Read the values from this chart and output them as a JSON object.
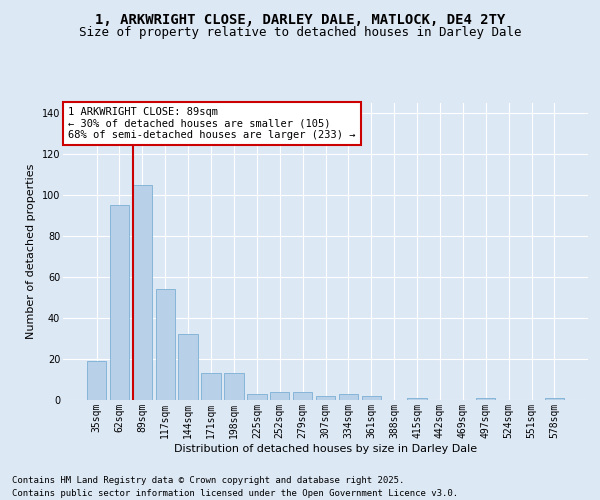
{
  "title_line1": "1, ARKWRIGHT CLOSE, DARLEY DALE, MATLOCK, DE4 2TY",
  "title_line2": "Size of property relative to detached houses in Darley Dale",
  "xlabel": "Distribution of detached houses by size in Darley Dale",
  "ylabel": "Number of detached properties",
  "categories": [
    "35sqm",
    "62sqm",
    "89sqm",
    "117sqm",
    "144sqm",
    "171sqm",
    "198sqm",
    "225sqm",
    "252sqm",
    "279sqm",
    "307sqm",
    "334sqm",
    "361sqm",
    "388sqm",
    "415sqm",
    "442sqm",
    "469sqm",
    "497sqm",
    "524sqm",
    "551sqm",
    "578sqm"
  ],
  "values": [
    19,
    95,
    105,
    54,
    32,
    13,
    13,
    3,
    4,
    4,
    2,
    3,
    2,
    0,
    1,
    0,
    0,
    1,
    0,
    0,
    1
  ],
  "bar_color": "#b8d0e8",
  "bar_edge_color": "#7aafd4",
  "highlight_index": 2,
  "highlight_color": "#cc0000",
  "annotation_text": "1 ARKWRIGHT CLOSE: 89sqm\n← 30% of detached houses are smaller (105)\n68% of semi-detached houses are larger (233) →",
  "annotation_box_color": "#ffffff",
  "annotation_box_edge": "#cc0000",
  "ylim": [
    0,
    145
  ],
  "yticks": [
    0,
    20,
    40,
    60,
    80,
    100,
    120,
    140
  ],
  "background_color": "#dde8f5",
  "plot_background": "#dde8f5",
  "grid_color": "#ffffff",
  "footer_line1": "Contains HM Land Registry data © Crown copyright and database right 2025.",
  "footer_line2": "Contains public sector information licensed under the Open Government Licence v3.0.",
  "title_fontsize": 10,
  "subtitle_fontsize": 9,
  "axis_label_fontsize": 8,
  "tick_fontsize": 7,
  "annotation_fontsize": 7.5,
  "footer_fontsize": 6.5
}
